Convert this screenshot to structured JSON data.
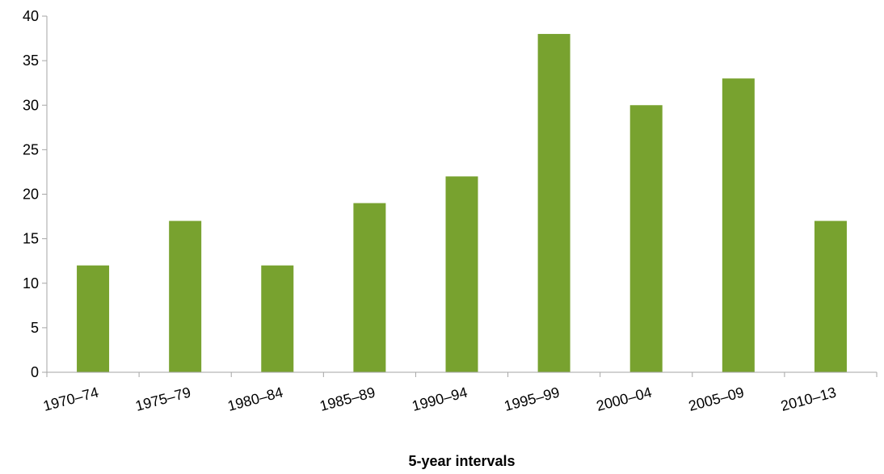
{
  "chart_data": {
    "type": "bar",
    "title": "",
    "xlabel": "5-year intervals",
    "ylabel": "",
    "categories": [
      "1970–74",
      "1975–79",
      "1980–84",
      "1985–89",
      "1990–94",
      "1995–99",
      "2000–04",
      "2005–09",
      "2010–13"
    ],
    "values": [
      12,
      17,
      12,
      19,
      22,
      38,
      30,
      33,
      17
    ],
    "ylim": [
      0,
      40
    ],
    "yticks": [
      0,
      5,
      10,
      15,
      20,
      25,
      30,
      35,
      40
    ],
    "grid": false,
    "legend": "none",
    "bar_color": "#78a22f",
    "axis_color": "#a6a6a6"
  }
}
